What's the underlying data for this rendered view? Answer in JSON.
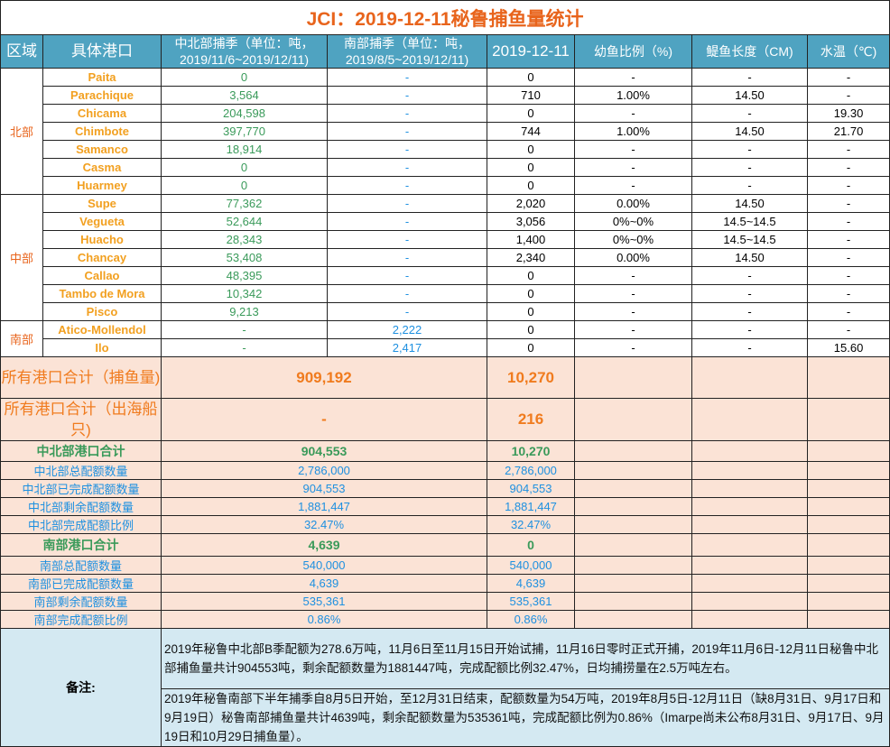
{
  "title": "JCI：2019-12-11秘鲁捕鱼量统计",
  "headers": [
    "区域",
    "具体港口",
    "中北部捕季（单位：吨，2019/11/6~2019/12/11)",
    "南部捕季（单位：吨，2019/8/5~2019/12/11)",
    "2019-12-11",
    "幼鱼比例（%)",
    "鳀鱼长度（CM)",
    "水温（℃)"
  ],
  "regions": [
    {
      "name": "北部",
      "rows": [
        [
          "Paita",
          "0",
          "-",
          "0",
          "-",
          "-",
          "-"
        ],
        [
          "Parachique",
          "3,564",
          "-",
          "710",
          "1.00%",
          "14.50",
          "-"
        ],
        [
          "Chicama",
          "204,598",
          "-",
          "0",
          "-",
          "-",
          "19.30"
        ],
        [
          "Chimbote",
          "397,770",
          "-",
          "744",
          "1.00%",
          "14.50",
          "21.70"
        ],
        [
          "Samanco",
          "18,914",
          "-",
          "0",
          "-",
          "-",
          "-"
        ],
        [
          "Casma",
          "0",
          "-",
          "0",
          "-",
          "-",
          "-"
        ],
        [
          "Huarmey",
          "0",
          "-",
          "0",
          "-",
          "-",
          "-"
        ]
      ]
    },
    {
      "name": "中部",
      "rows": [
        [
          "Supe",
          "77,362",
          "-",
          "2,020",
          "0.00%",
          "14.50",
          "-"
        ],
        [
          "Vegueta",
          "52,644",
          "-",
          "3,056",
          "0%~0%",
          "14.5~14.5",
          "-"
        ],
        [
          "Huacho",
          "28,343",
          "-",
          "1,400",
          "0%~0%",
          "14.5~14.5",
          "-"
        ],
        [
          "Chancay",
          "53,408",
          "-",
          "2,340",
          "0.00%",
          "14.50",
          "-"
        ],
        [
          "Callao",
          "48,395",
          "-",
          "0",
          "-",
          "-",
          "-"
        ],
        [
          "Tambo de Mora",
          "10,342",
          "-",
          "0",
          "-",
          "-",
          "-"
        ],
        [
          "Pisco",
          "9,213",
          "-",
          "0",
          "-",
          "-",
          "-"
        ]
      ]
    },
    {
      "name": "南部",
      "rows": [
        [
          "Atico-Mollendol",
          "-",
          "2,222",
          "0",
          "-",
          "-",
          "-"
        ],
        [
          "Ilo",
          "-",
          "2,417",
          "0",
          "-",
          "-",
          "15.60"
        ]
      ]
    }
  ],
  "summary": [
    {
      "label": "所有港口合计（捕鱼量)",
      "season": "909,192",
      "day": "10,270",
      "style": "big"
    },
    {
      "label": "所有港口合计（出海船只)",
      "season": "-",
      "day": "216",
      "style": "big"
    },
    {
      "label": "中北部港口合计",
      "season": "904,553",
      "day": "10,270",
      "style": "gn"
    },
    {
      "label": "中北部总配额数量",
      "season": "2,786,000",
      "day": "2,786,000",
      "style": "bl"
    },
    {
      "label": "中北部已完成配额数量",
      "season": "904,553",
      "day": "904,553",
      "style": "bl"
    },
    {
      "label": "中北部剩余配额数量",
      "season": "1,881,447",
      "day": "1,881,447",
      "style": "bl"
    },
    {
      "label": "中北部完成配额比例",
      "season": "32.47%",
      "day": "32.47%",
      "style": "bl"
    },
    {
      "label": "南部港口合计",
      "season": "4,639",
      "day": "0",
      "style": "gn"
    },
    {
      "label": "南部总配额数量",
      "season": "540,000",
      "day": "540,000",
      "style": "bl"
    },
    {
      "label": "南部已完成配额数量",
      "season": "4,639",
      "day": "4,639",
      "style": "bl"
    },
    {
      "label": "南部剩余配额数量",
      "season": "535,361",
      "day": "535,361",
      "style": "bl"
    },
    {
      "label": "南部完成配额比例",
      "season": "0.86%",
      "day": "0.86%",
      "style": "bl"
    }
  ],
  "notes": {
    "label": "备注:",
    "items": [
      "2019年秘鲁中北部B季配额为278.6万吨，11月6日至11月15日开始试捕，11月16日零时正式开捕，2019年11月6日-12月11日秘鲁中北部捕鱼量共计904553吨，剩余配额数量为1881447吨，完成配额比例32.47%，日均捕捞量在2.5万吨左右。",
      "2019年秘鲁南部下半年捕季自8月5日开始，至12月31日结束，配额数量为54万吨，2019年8月5日-12月11日（缺8月31日、9月17日和9月19日）秘鲁南部捕鱼量共计4639吨，剩余配额数量为535361吨，完成配额比例为0.86%（Imarpe尚未公布8月31日、9月17日、9月19日和10月29日捕鱼量）。"
    ]
  },
  "colors": {
    "header": "#4fa3c1",
    "title": "#e8641c",
    "port": "#f2a020",
    "north_values": "#3a9a5a",
    "south_values": "#1e90e0",
    "summary_bg": "#fbe3d6",
    "notes_bg": "#d4e9f2"
  }
}
